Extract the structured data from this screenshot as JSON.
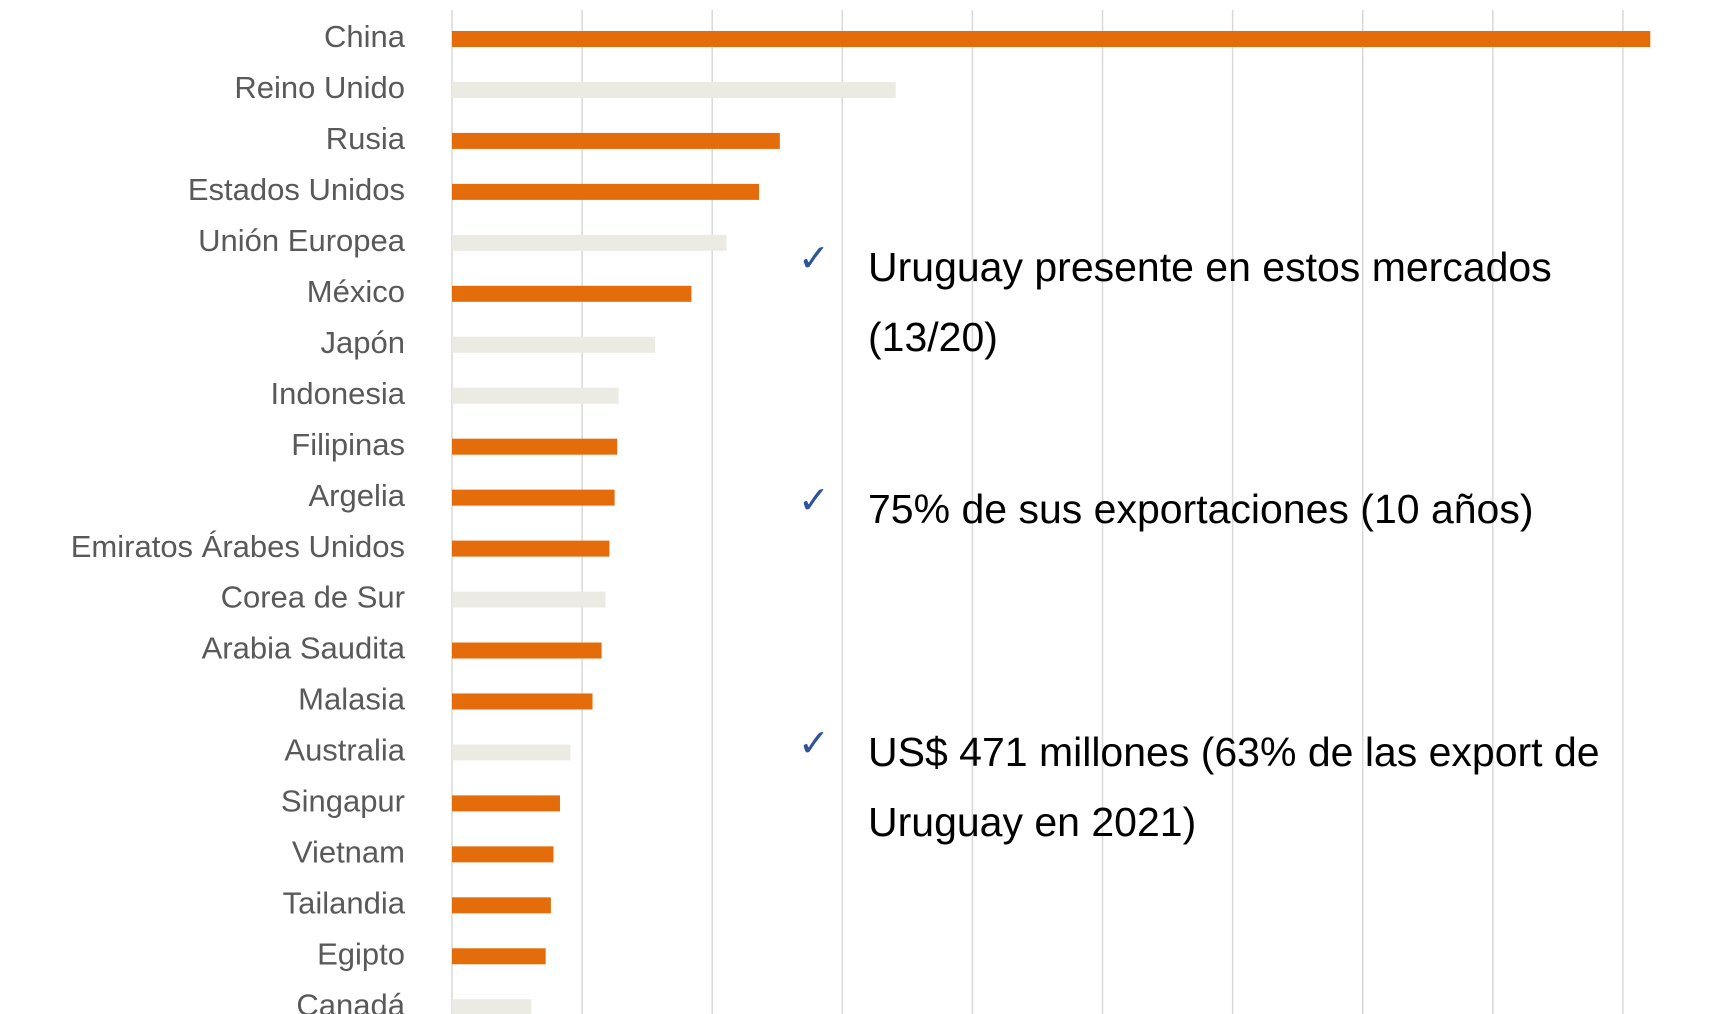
{
  "chart_data": {
    "type": "bar",
    "orientation": "horizontal",
    "categories": [
      "China",
      "Reino Unido",
      "Rusia",
      "Estados Unidos",
      "Unión Europea",
      "México",
      "Japón",
      "Indonesia",
      "Filipinas",
      "Argelia",
      "Emiratos Árabes Unidos",
      "Corea de Sur",
      "Arabia Saudita",
      "Malasia",
      "Australia",
      "Singapur",
      "Vietnam",
      "Tailandia",
      "Egipto",
      "Canadá"
    ],
    "values": [
      9.21,
      3.41,
      2.52,
      2.36,
      2.11,
      1.84,
      1.56,
      1.28,
      1.27,
      1.25,
      1.21,
      1.18,
      1.15,
      1.08,
      0.91,
      0.83,
      0.78,
      0.76,
      0.72,
      0.61
    ],
    "colors": [
      "#e46c0a",
      "#ebeae3",
      "#e46c0a",
      "#e46c0a",
      "#ebeae3",
      "#e46c0a",
      "#ebeae3",
      "#ebeae3",
      "#e46c0a",
      "#e46c0a",
      "#e46c0a",
      "#ebeae3",
      "#e46c0a",
      "#e46c0a",
      "#ebeae3",
      "#e46c0a",
      "#e46c0a",
      "#e46c0a",
      "#e46c0a",
      "#ebeae3"
    ],
    "xlim": [
      0,
      9.5
    ],
    "xticks": [
      0,
      1,
      2,
      3,
      4,
      5,
      6,
      7,
      8,
      9
    ],
    "grid": true,
    "annotations": [
      "Uruguay presente en estos mercados (13/20)",
      "75% de sus exportaciones (10 años)",
      "US$ 471 millones (63% de las export de Uruguay en 2021)"
    ]
  }
}
